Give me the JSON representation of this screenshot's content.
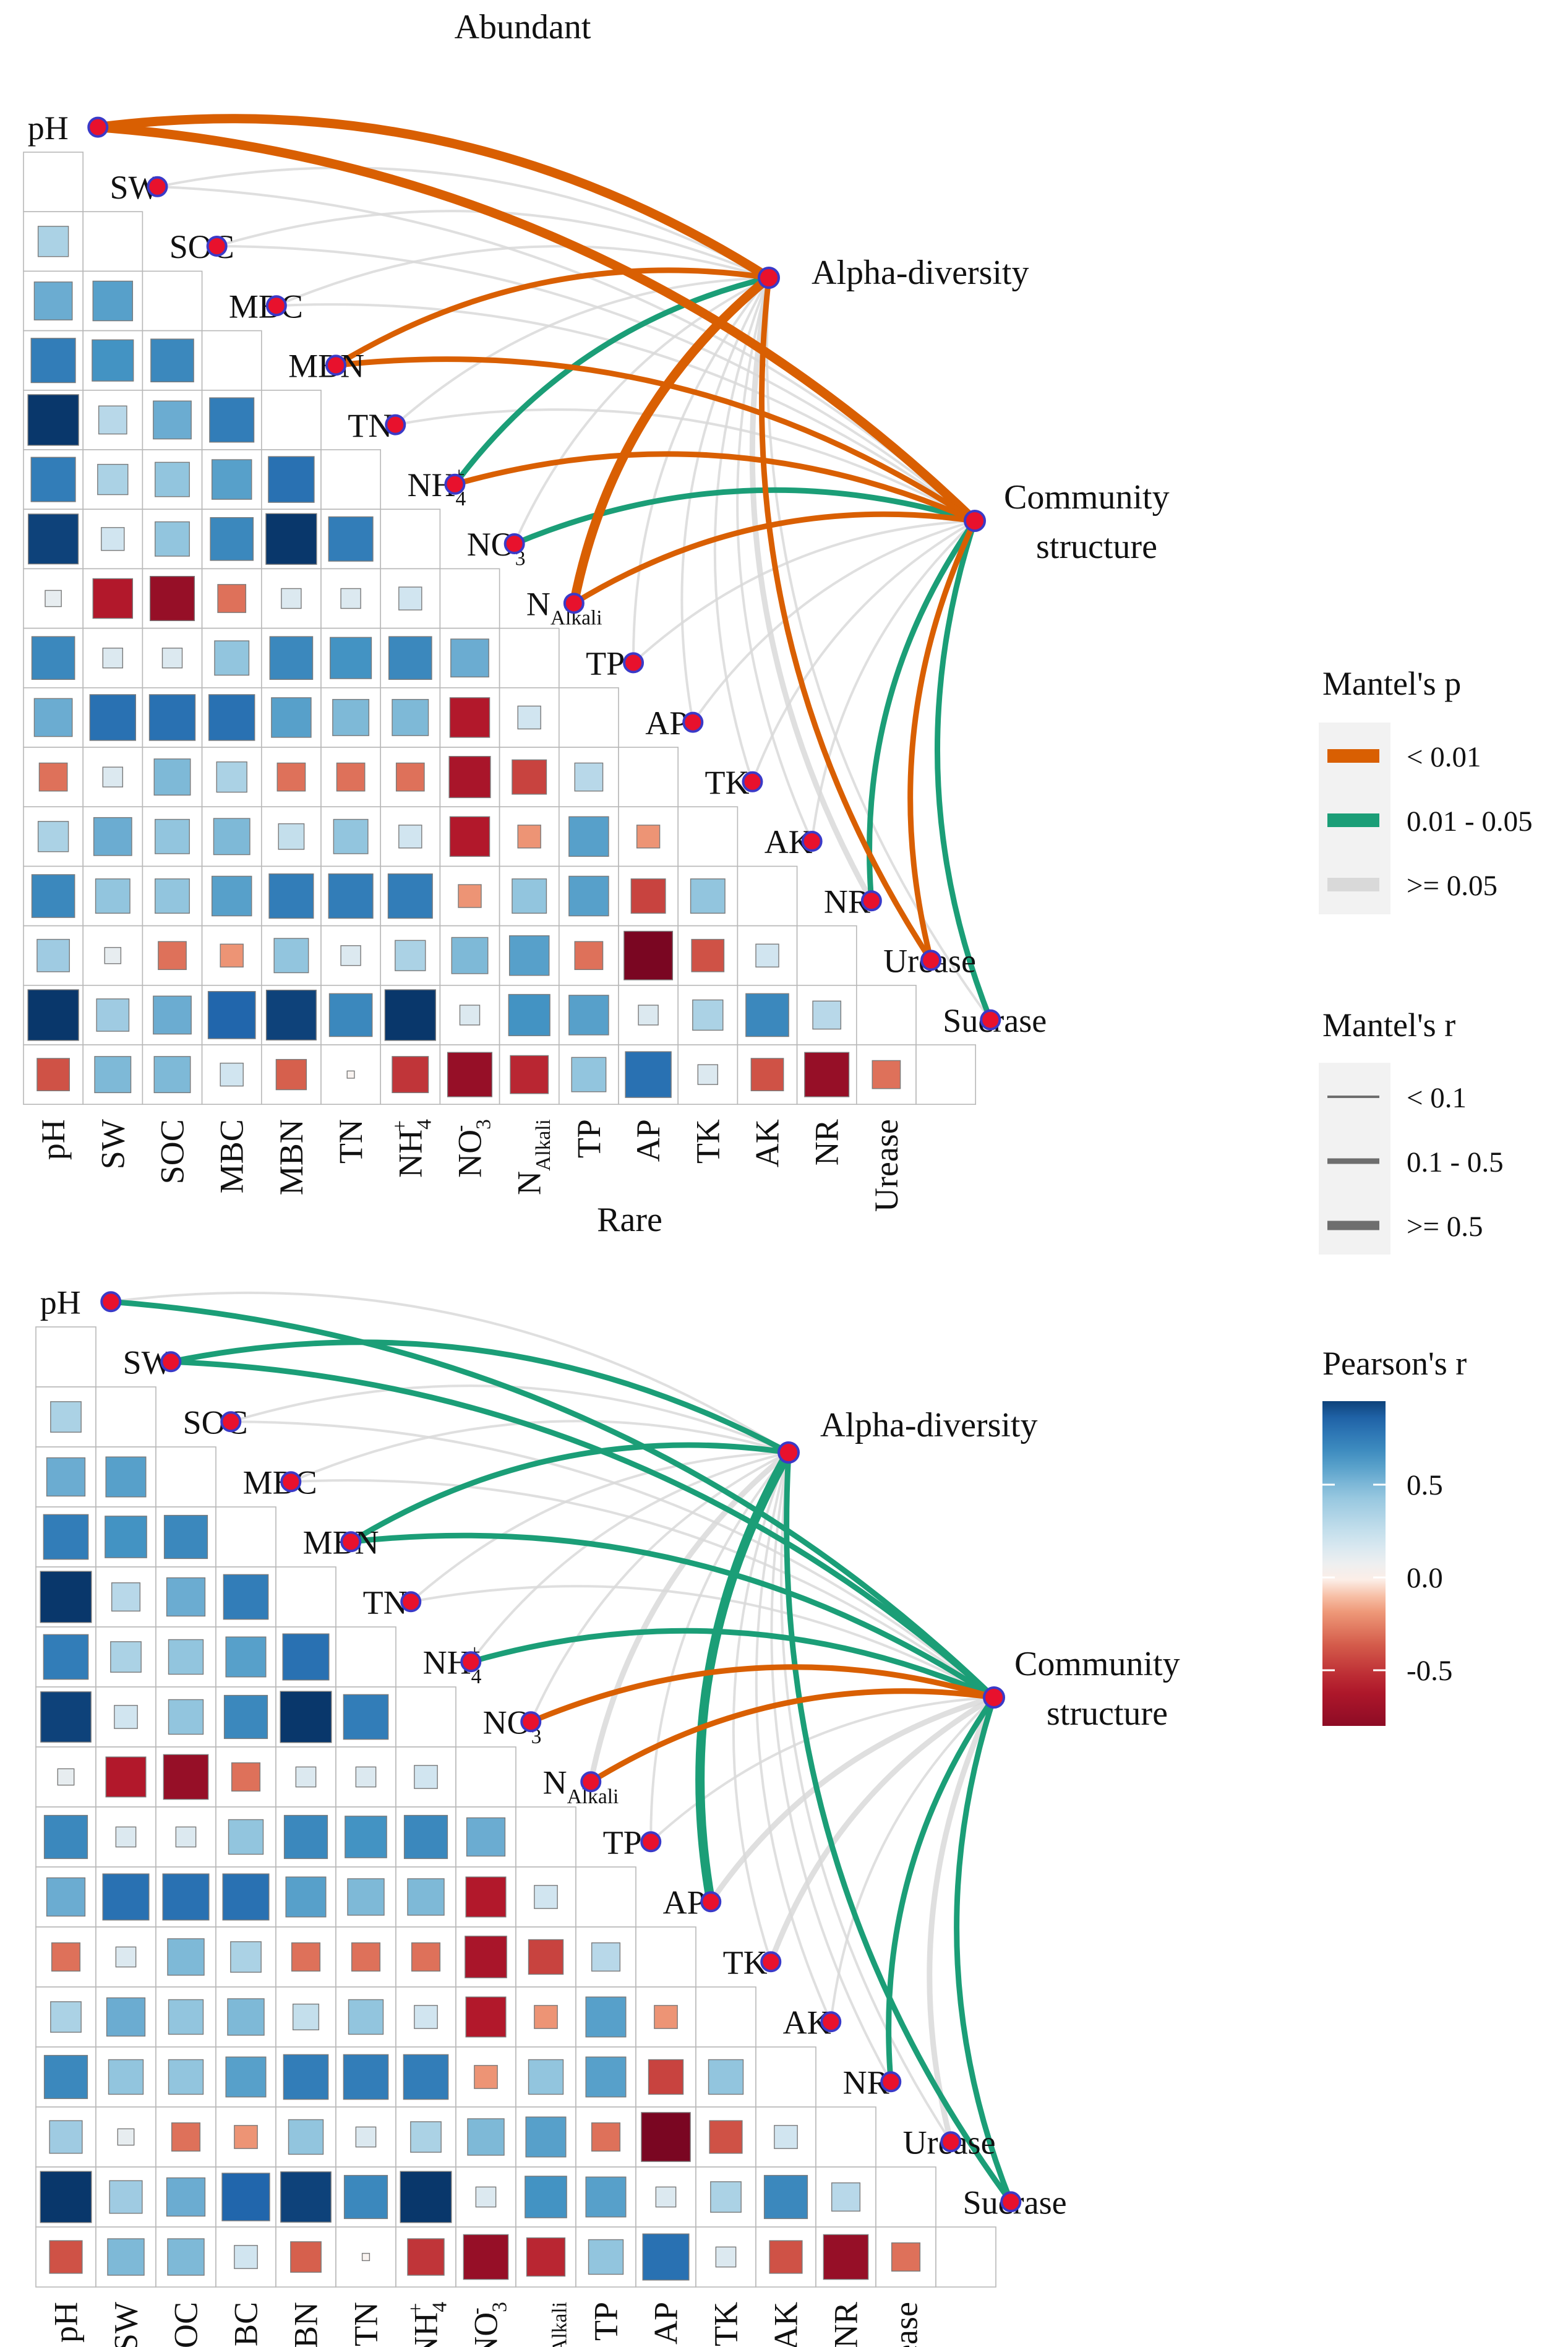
{
  "chart_data": {
    "type": "heatmap",
    "variables": [
      "pH",
      "SW",
      "SOC",
      "MBC",
      "MBN",
      "TN",
      "NH4+",
      "NO3-",
      "NAlkali",
      "TP",
      "AP",
      "TK",
      "AK",
      "NR",
      "Urease",
      "Sucrase"
    ],
    "variable_labels": {
      "pH": {
        "t": "pH"
      },
      "SW": {
        "t": "SW"
      },
      "SOC": {
        "t": "SOC"
      },
      "MBC": {
        "t": "MBC"
      },
      "MBN": {
        "t": "MBN"
      },
      "TN": {
        "t": "TN"
      },
      "NH4+": {
        "t": "NH",
        "sub": "4",
        "sup": "+"
      },
      "NO3-": {
        "t": "NO",
        "sub": "3",
        "sup": "-"
      },
      "NAlkali": {
        "t": "N",
        "sub": "Alkali"
      },
      "TP": {
        "t": "TP"
      },
      "AP": {
        "t": "AP"
      },
      "TK": {
        "t": "TK"
      },
      "AK": {
        "t": "AK"
      },
      "NR": {
        "t": "NR"
      },
      "Urease": {
        "t": "Urease"
      },
      "Sucrase": {
        "t": "Sucrase"
      }
    },
    "correlation_lower": [
      [],
      [
        0.35
      ],
      [
        0.55,
        0.6
      ],
      [
        0.75,
        0.65,
        0.7
      ],
      [
        0.98,
        0.3,
        0.55,
        0.75
      ],
      [
        0.75,
        0.35,
        0.45,
        0.6,
        0.8
      ],
      [
        0.95,
        0.2,
        0.45,
        0.7,
        0.98,
        0.75
      ],
      [
        0.1,
        -0.6,
        -0.75,
        -0.3,
        0.15,
        0.15,
        0.2
      ],
      [
        0.7,
        0.15,
        0.15,
        0.45,
        0.7,
        0.65,
        0.7,
        0.55
      ],
      [
        0.55,
        0.8,
        0.8,
        0.8,
        0.6,
        0.5,
        0.5,
        -0.6,
        0.2
      ],
      [
        -0.3,
        0.15,
        0.5,
        0.35,
        -0.3,
        -0.3,
        -0.3,
        -0.65,
        -0.45,
        0.3
      ],
      [
        0.35,
        0.55,
        0.45,
        0.5,
        0.25,
        0.45,
        0.2,
        -0.6,
        -0.2,
        0.6,
        -0.2
      ],
      [
        0.7,
        0.45,
        0.45,
        0.6,
        0.75,
        0.75,
        0.75,
        -0.2,
        0.45,
        0.6,
        -0.45,
        0.45
      ],
      [
        0.4,
        0.1,
        -0.3,
        -0.2,
        0.45,
        0.15,
        0.35,
        0.5,
        0.6,
        -0.3,
        -0.9,
        -0.4,
        0.2
      ],
      [
        0.98,
        0.4,
        0.55,
        0.85,
        0.95,
        0.7,
        0.98,
        0.15,
        0.65,
        0.6,
        0.15,
        0.35,
        0.7,
        0.3
      ],
      [
        -0.4,
        0.5,
        0.5,
        0.2,
        -0.35,
        0.02,
        -0.5,
        -0.75,
        -0.55,
        0.45,
        0.8,
        0.15,
        -0.4,
        -0.75,
        -0.3
      ]
    ],
    "color_scale": {
      "title": "Pearson's r",
      "ticks": [
        "0.5",
        "0.0",
        "-0.5"
      ],
      "min": -0.8,
      "max": 0.95
    },
    "panels": [
      {
        "title": "Abundant",
        "targets": [
          "Alpha-diversity",
          "Community structure"
        ],
        "mantel_links": [
          {
            "target": 0,
            "var": "pH",
            "p": "<0.01",
            "r": ">=0.5"
          },
          {
            "target": 1,
            "var": "pH",
            "p": "<0.01",
            "r": ">=0.5"
          },
          {
            "target": 0,
            "var": "SW",
            "p": ">=0.05",
            "r": "<0.1"
          },
          {
            "target": 1,
            "var": "SW",
            "p": ">=0.05",
            "r": "<0.1"
          },
          {
            "target": 0,
            "var": "SOC",
            "p": ">=0.05",
            "r": "<0.1"
          },
          {
            "target": 1,
            "var": "SOC",
            "p": ">=0.05",
            "r": "<0.1"
          },
          {
            "target": 0,
            "var": "MBC",
            "p": ">=0.05",
            "r": "<0.1"
          },
          {
            "target": 1,
            "var": "MBC",
            "p": ">=0.05",
            "r": "<0.1"
          },
          {
            "target": 0,
            "var": "MBN",
            "p": "<0.01",
            "r": "0.1-0.5"
          },
          {
            "target": 1,
            "var": "MBN",
            "p": "<0.01",
            "r": "0.1-0.5"
          },
          {
            "target": 0,
            "var": "TN",
            "p": ">=0.05",
            "r": "<0.1"
          },
          {
            "target": 1,
            "var": "TN",
            "p": ">=0.05",
            "r": "<0.1"
          },
          {
            "target": 0,
            "var": "NH4+",
            "p": "0.01-0.05",
            "r": "0.1-0.5"
          },
          {
            "target": 1,
            "var": "NH4+",
            "p": "<0.01",
            "r": "0.1-0.5"
          },
          {
            "target": 0,
            "var": "NO3-",
            "p": ">=0.05",
            "r": "<0.1"
          },
          {
            "target": 1,
            "var": "NO3-",
            "p": "0.01-0.05",
            "r": "0.1-0.5"
          },
          {
            "target": 0,
            "var": "NAlkali",
            "p": "<0.01",
            "r": ">=0.5"
          },
          {
            "target": 1,
            "var": "NAlkali",
            "p": "<0.01",
            "r": "0.1-0.5"
          },
          {
            "target": 0,
            "var": "TP",
            "p": ">=0.05",
            "r": "<0.1"
          },
          {
            "target": 1,
            "var": "TP",
            "p": ">=0.05",
            "r": "<0.1"
          },
          {
            "target": 0,
            "var": "AP",
            "p": ">=0.05",
            "r": "<0.1"
          },
          {
            "target": 1,
            "var": "AP",
            "p": ">=0.05",
            "r": "<0.1"
          },
          {
            "target": 0,
            "var": "TK",
            "p": ">=0.05",
            "r": "<0.1"
          },
          {
            "target": 1,
            "var": "TK",
            "p": ">=0.05",
            "r": "<0.1"
          },
          {
            "target": 0,
            "var": "AK",
            "p": ">=0.05",
            "r": "<0.1"
          },
          {
            "target": 1,
            "var": "AK",
            "p": ">=0.05",
            "r": "<0.1"
          },
          {
            "target": 0,
            "var": "NR",
            "p": ">=0.05",
            "r": "0.1-0.5"
          },
          {
            "target": 1,
            "var": "NR",
            "p": "0.01-0.05",
            "r": "0.1-0.5"
          },
          {
            "target": 0,
            "var": "Urease",
            "p": "<0.01",
            "r": "0.1-0.5"
          },
          {
            "target": 1,
            "var": "Urease",
            "p": "<0.01",
            "r": "0.1-0.5"
          },
          {
            "target": 0,
            "var": "Sucrase",
            "p": ">=0.05",
            "r": "<0.1"
          },
          {
            "target": 1,
            "var": "Sucrase",
            "p": "0.01-0.05",
            "r": "0.1-0.5"
          }
        ]
      },
      {
        "title": "Rare",
        "targets": [
          "Alpha-diversity",
          "Community structure"
        ],
        "mantel_links": [
          {
            "target": 0,
            "var": "pH",
            "p": ">=0.05",
            "r": "<0.1"
          },
          {
            "target": 1,
            "var": "pH",
            "p": "0.01-0.05",
            "r": "0.1-0.5"
          },
          {
            "target": 0,
            "var": "SW",
            "p": "0.01-0.05",
            "r": "0.1-0.5"
          },
          {
            "target": 1,
            "var": "SW",
            "p": "0.01-0.05",
            "r": "0.1-0.5"
          },
          {
            "target": 0,
            "var": "SOC",
            "p": ">=0.05",
            "r": "<0.1"
          },
          {
            "target": 1,
            "var": "SOC",
            "p": ">=0.05",
            "r": "<0.1"
          },
          {
            "target": 0,
            "var": "MBC",
            "p": ">=0.05",
            "r": "<0.1"
          },
          {
            "target": 1,
            "var": "MBC",
            "p": ">=0.05",
            "r": "<0.1"
          },
          {
            "target": 0,
            "var": "MBN",
            "p": "0.01-0.05",
            "r": "0.1-0.5"
          },
          {
            "target": 1,
            "var": "MBN",
            "p": "0.01-0.05",
            "r": "0.1-0.5"
          },
          {
            "target": 0,
            "var": "TN",
            "p": ">=0.05",
            "r": "<0.1"
          },
          {
            "target": 1,
            "var": "TN",
            "p": ">=0.05",
            "r": "<0.1"
          },
          {
            "target": 0,
            "var": "NH4+",
            "p": ">=0.05",
            "r": "<0.1"
          },
          {
            "target": 1,
            "var": "NH4+",
            "p": "0.01-0.05",
            "r": "0.1-0.5"
          },
          {
            "target": 0,
            "var": "NO3-",
            "p": ">=0.05",
            "r": "<0.1"
          },
          {
            "target": 1,
            "var": "NO3-",
            "p": "<0.01",
            "r": "0.1-0.5"
          },
          {
            "target": 0,
            "var": "NAlkali",
            "p": ">=0.05",
            "r": "0.1-0.5"
          },
          {
            "target": 1,
            "var": "NAlkali",
            "p": "<0.01",
            "r": "0.1-0.5"
          },
          {
            "target": 0,
            "var": "TP",
            "p": ">=0.05",
            "r": "<0.1"
          },
          {
            "target": 1,
            "var": "TP",
            "p": ">=0.05",
            "r": "<0.1"
          },
          {
            "target": 0,
            "var": "AP",
            "p": "0.01-0.05",
            "r": ">=0.5"
          },
          {
            "target": 1,
            "var": "AP",
            "p": ">=0.05",
            "r": "0.1-0.5"
          },
          {
            "target": 0,
            "var": "TK",
            "p": ">=0.05",
            "r": "<0.1"
          },
          {
            "target": 1,
            "var": "TK",
            "p": ">=0.05",
            "r": "0.1-0.5"
          },
          {
            "target": 0,
            "var": "AK",
            "p": ">=0.05",
            "r": "<0.1"
          },
          {
            "target": 1,
            "var": "AK",
            "p": ">=0.05",
            "r": "<0.1"
          },
          {
            "target": 0,
            "var": "NR",
            "p": ">=0.05",
            "r": "<0.1"
          },
          {
            "target": 1,
            "var": "NR",
            "p": "0.01-0.05",
            "r": "0.1-0.5"
          },
          {
            "target": 0,
            "var": "Urease",
            "p": ">=0.05",
            "r": "<0.1"
          },
          {
            "target": 1,
            "var": "Urease",
            "p": ">=0.05",
            "r": "0.1-0.5"
          },
          {
            "target": 0,
            "var": "Sucrase",
            "p": "0.01-0.05",
            "r": "0.1-0.5"
          },
          {
            "target": 1,
            "var": "Sucrase",
            "p": "0.01-0.05",
            "r": "0.1-0.5"
          }
        ]
      }
    ],
    "legend": {
      "mantel_p": {
        "title": "Mantel's p",
        "entries": [
          {
            "label": "< 0.01",
            "key": "<0.01",
            "color": "#d95f02"
          },
          {
            "label": "0.01 - 0.05",
            "key": "0.01-0.05",
            "color": "#1b9e77"
          },
          {
            "label": ">= 0.05",
            "key": ">=0.05",
            "color": "#d9d9d9"
          }
        ]
      },
      "mantel_r": {
        "title": "Mantel's r",
        "entries": [
          {
            "label": "< 0.1",
            "key": "<0.1"
          },
          {
            "label": "0.1 - 0.5",
            "key": "0.1-0.5"
          },
          {
            "label": ">= 0.5",
            "key": ">=0.5"
          }
        ]
      }
    },
    "node_color": "#e8112d",
    "node_stroke": "#3a3ac8"
  }
}
